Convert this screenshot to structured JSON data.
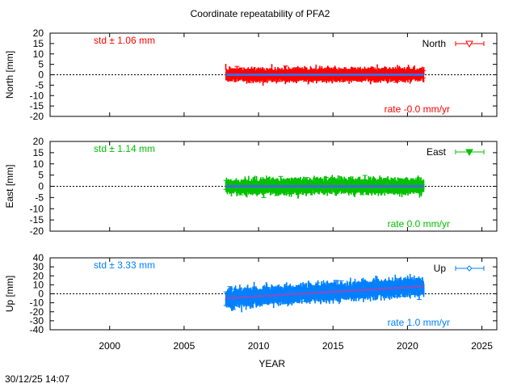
{
  "title": "Coordinate repeatability of PFA2",
  "timestamp": "30/12/25 14:07",
  "chart_data": [
    {
      "type": "scatter",
      "panel": "north",
      "ylabel": "North [mm]",
      "ylim": [
        -20,
        20
      ],
      "yticks": [
        "20",
        "15",
        "10",
        "5",
        "0",
        "-5",
        "-10",
        "-15",
        "-20"
      ],
      "xlim": [
        1996,
        2026
      ],
      "legend": "North",
      "legend_position": "top-right",
      "marker": "open-triangle-down",
      "color": "#ff0000",
      "trend_color": "#4169e1",
      "std_label": "std ± 1.06 mm",
      "rate_label": "rate -0.0 mm/yr",
      "series": [
        {
          "name": "North",
          "x_start": 2007.8,
          "x_end": 2021.1,
          "rate_mm_per_yr": 0.0,
          "offset_mm": 0.0,
          "std_mm": 1.06
        }
      ]
    },
    {
      "type": "scatter",
      "panel": "east",
      "ylabel": "East [mm]",
      "ylim": [
        -20,
        20
      ],
      "yticks": [
        "20",
        "15",
        "10",
        "5",
        "0",
        "-5",
        "-10",
        "-15",
        "-20"
      ],
      "xlim": [
        1996,
        2026
      ],
      "legend": "East",
      "legend_position": "top-right",
      "marker": "filled-triangle-down",
      "color": "#00c000",
      "trend_color": "#4169e1",
      "std_label": "std ± 1.14 mm",
      "rate_label": "rate  0.0 mm/yr",
      "series": [
        {
          "name": "East",
          "x_start": 2007.8,
          "x_end": 2021.1,
          "rate_mm_per_yr": 0.0,
          "offset_mm": 0.0,
          "std_mm": 1.14
        }
      ]
    },
    {
      "type": "scatter",
      "panel": "up",
      "ylabel": "Up [mm]",
      "ylim": [
        -40,
        40
      ],
      "yticks": [
        "40",
        "30",
        "20",
        "10",
        "0",
        "-10",
        "-20",
        "-30",
        "-40"
      ],
      "xlim": [
        1996,
        2026
      ],
      "xticks": [
        "2000",
        "2005",
        "2010",
        "2015",
        "2020",
        "2025"
      ],
      "xlabel": "YEAR",
      "legend": "Up",
      "legend_position": "top-right",
      "marker": "open-diamond",
      "color": "#0080ff",
      "trend_color": "#6a5acd",
      "std_label": "std ± 3.33 mm",
      "rate_label": "rate  1.0 mm/yr",
      "series": [
        {
          "name": "Up",
          "x_start": 2007.8,
          "x_end": 2021.1,
          "rate_mm_per_yr": 1.0,
          "offset_mm": -5.0,
          "std_mm": 3.33
        }
      ]
    }
  ]
}
